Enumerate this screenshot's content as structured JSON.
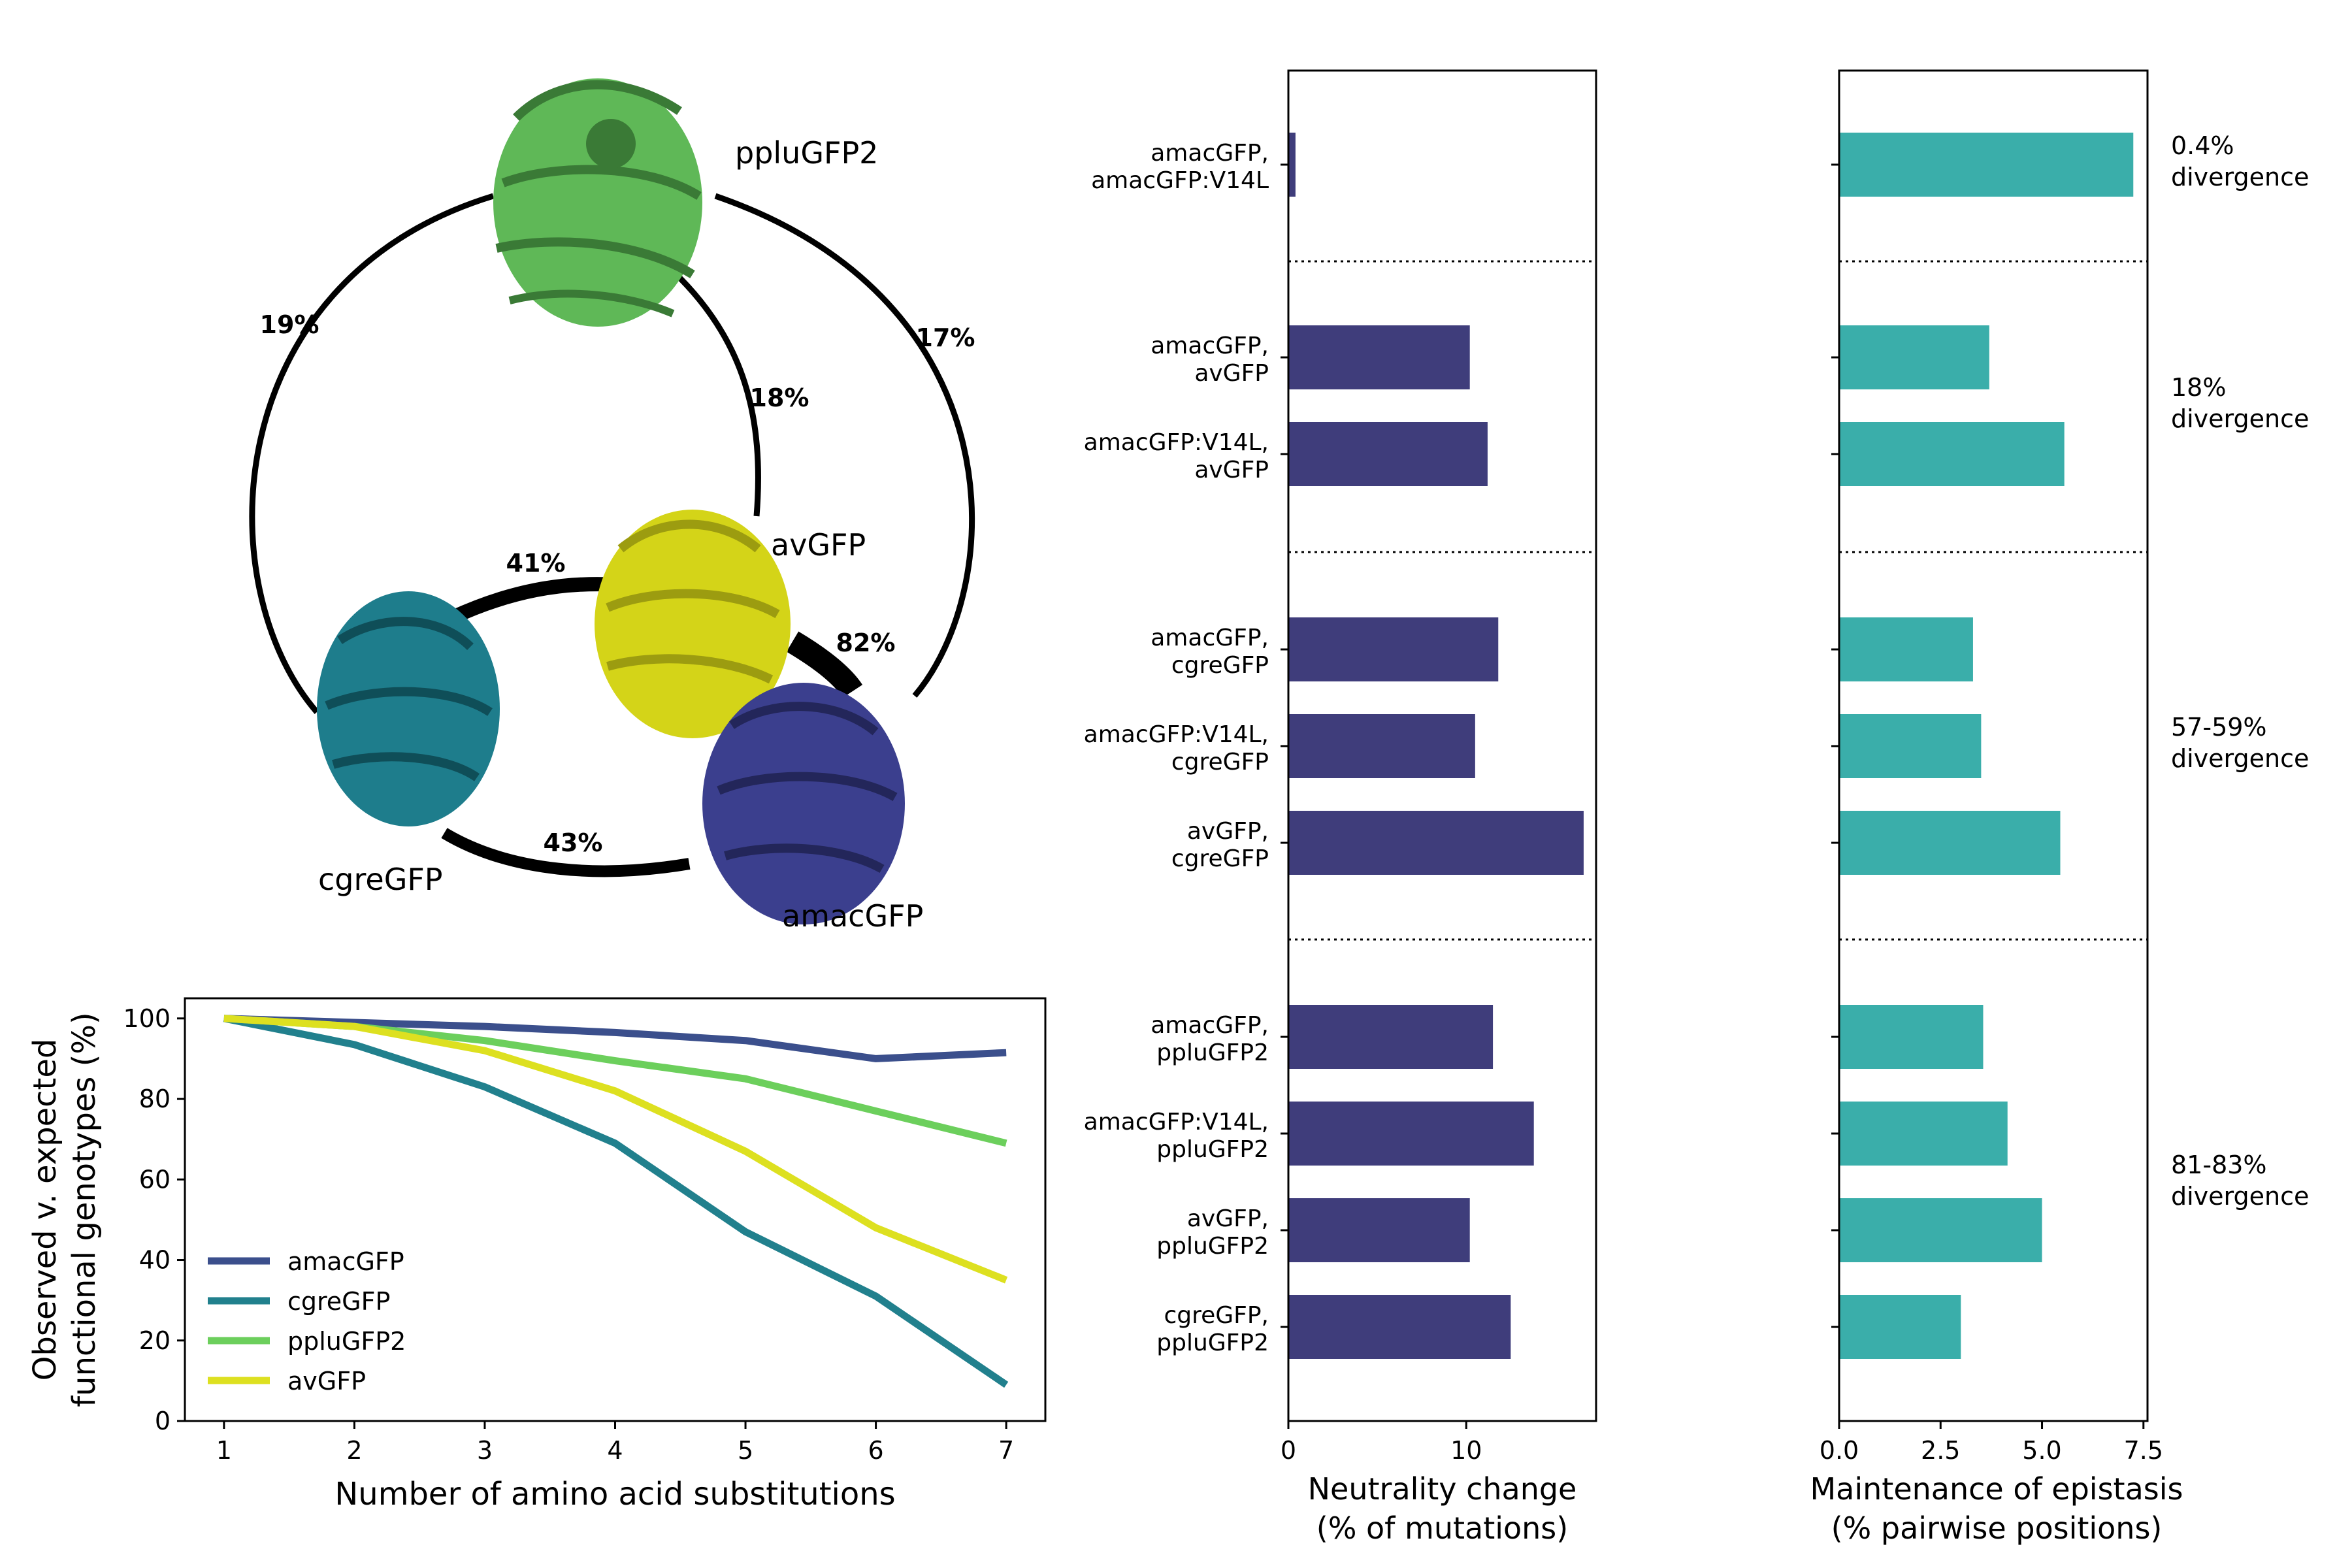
{
  "network": {
    "proteins": [
      {
        "id": "ppluGFP2",
        "label": "ppluGFP2",
        "color": "#5fb857"
      },
      {
        "id": "avGFP",
        "label": "avGFP",
        "color": "#d4d418"
      },
      {
        "id": "cgreGFP",
        "label": "cgreGFP",
        "color": "#1e7d8c"
      },
      {
        "id": "amacGFP",
        "label": "amacGFP",
        "color": "#3b3f8e"
      }
    ],
    "edges": [
      {
        "from": "ppluGFP2",
        "to": "cgreGFP",
        "label": "19%"
      },
      {
        "from": "ppluGFP2",
        "to": "avGFP",
        "label": "18%"
      },
      {
        "from": "ppluGFP2",
        "to": "amacGFP",
        "label": "17%"
      },
      {
        "from": "cgreGFP",
        "to": "avGFP",
        "label": "41%"
      },
      {
        "from": "avGFP",
        "to": "amacGFP",
        "label": "82%"
      },
      {
        "from": "cgreGFP",
        "to": "amacGFP",
        "label": "43%"
      }
    ]
  },
  "chart_data": [
    {
      "type": "line",
      "xlabel": "Number of amino acid substitutions",
      "ylabel": "Observed v. expected functional genotypes (%)",
      "ylabel_lines": [
        "Observed v. expected",
        "functional genotypes (%)"
      ],
      "x": [
        1,
        2,
        3,
        4,
        5,
        6,
        7
      ],
      "xticks": [
        "1",
        "2",
        "3",
        "4",
        "5",
        "6",
        "7"
      ],
      "yticks": [
        "0",
        "20",
        "40",
        "60",
        "80",
        "100"
      ],
      "xlim": [
        0.7,
        7.3
      ],
      "ylim": [
        0,
        105
      ],
      "legend_position": "lower-left",
      "series": [
        {
          "name": "amacGFP",
          "color": "#3b4f8c",
          "values": [
            100,
            99,
            98,
            96.5,
            94.5,
            90,
            91.5
          ]
        },
        {
          "name": "cgreGFP",
          "color": "#21808d",
          "values": [
            100,
            93.5,
            83,
            69,
            47,
            31,
            9
          ]
        },
        {
          "name": "ppluGFP2",
          "color": "#6ccf5c",
          "values": [
            100,
            98,
            94.5,
            89.5,
            85,
            77,
            69
          ]
        },
        {
          "name": "avGFP",
          "color": "#dde020",
          "values": [
            100,
            98,
            92,
            82,
            67,
            48,
            35
          ]
        }
      ]
    },
    {
      "type": "bar",
      "orientation": "horizontal",
      "xlabel": "Neutrality change",
      "xlabel2": "(% of mutations)",
      "xlim": [
        0,
        17.3
      ],
      "xticks": [
        "0",
        "10"
      ],
      "xtick_values": [
        0,
        10
      ],
      "color": "#3f3d7b",
      "categories": [
        [
          "amacGFP,",
          "amacGFP:V14L"
        ],
        [
          "amacGFP,",
          "avGFP"
        ],
        [
          "amacGFP:V14L,",
          "avGFP"
        ],
        [
          "amacGFP,",
          "cgreGFP"
        ],
        [
          "amacGFP:V14L,",
          "cgreGFP"
        ],
        [
          "avGFP,",
          "cgreGFP"
        ],
        [
          "amacGFP,",
          "ppluGFP2"
        ],
        [
          "amacGFP:V14L,",
          "ppluGFP2"
        ],
        [
          "avGFP,",
          "ppluGFP2"
        ],
        [
          "cgreGFP,",
          "ppluGFP2"
        ]
      ],
      "values": [
        0.4,
        10.2,
        11.2,
        11.8,
        10.5,
        16.6,
        11.5,
        13.8,
        10.2,
        12.5
      ]
    },
    {
      "type": "bar",
      "orientation": "horizontal",
      "xlabel": "Maintenance of epistasis",
      "xlabel2": "(% pairwise positions)",
      "xlim": [
        0,
        7.6
      ],
      "xticks": [
        "0.0",
        "2.5",
        "5.0",
        "7.5"
      ],
      "xtick_values": [
        0,
        2.5,
        5,
        7.5
      ],
      "color": "#3aaeaa",
      "values": [
        7.25,
        3.7,
        5.55,
        3.3,
        3.5,
        5.45,
        3.55,
        4.15,
        5.0,
        3.0
      ],
      "divergence_groups": [
        [
          "0.4%",
          "divergence"
        ],
        [
          "18%",
          "divergence"
        ],
        [
          "57-59%",
          "divergence"
        ],
        [
          "81-83%",
          "divergence"
        ]
      ]
    }
  ]
}
